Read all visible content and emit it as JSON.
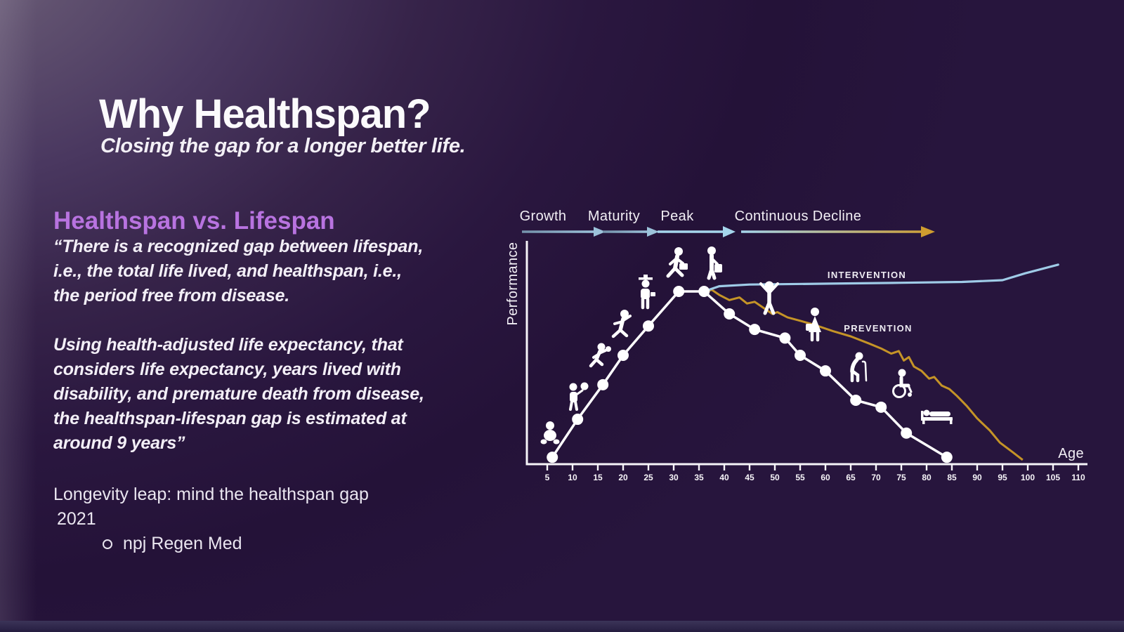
{
  "slide": {
    "title": "Why Healthspan?",
    "subtitle": "Closing the gap for a longer better life.",
    "section_heading": "Healthspan vs. Lifespan",
    "quote1_lines": [
      "“There is a recognized gap between lifespan,",
      "i.e., the total life lived, and healthspan, i.e.,",
      "the period free from disease."
    ],
    "quote2_lines": [
      "Using health-adjusted life expectancy, that",
      "considers life expectancy, years lived with",
      "disability, and premature death from disease,",
      "the healthspan-lifespan gap is estimated at",
      "around 9 years”"
    ],
    "citation_line1": "Longevity leap: mind the healthspan gap",
    "citation_year": "2021",
    "citation_source": "npj Regen Med"
  },
  "chart": {
    "phases": [
      "Growth",
      "Maturity",
      "Peak",
      "Continuous Decline"
    ],
    "y_axis_label": "Performance",
    "x_axis_label": "Age",
    "intervention_label": "INTERVENTION",
    "prevention_label": "PREVENTION",
    "colors": {
      "background_dark": "#241238",
      "background_light": "#6e6279",
      "accent_purple": "#b873e0",
      "series_white": "#ffffff",
      "intervention_blue": "#9fcbe7",
      "prevention_gold": "#c59427",
      "arrow_steel_start": "#7492ab",
      "arrow_steel_end": "#9cc2da",
      "arrow_sky": "#a5d5ec",
      "arrow_gold": "#cf9d2f",
      "axis": "#f6f4f8"
    }
  },
  "chart_data": {
    "type": "line",
    "xlabel": "Age",
    "ylabel": "Performance",
    "x_range": [
      5,
      110
    ],
    "x_ticks": [
      5,
      10,
      15,
      20,
      25,
      30,
      35,
      40,
      45,
      50,
      55,
      60,
      65,
      70,
      75,
      80,
      85,
      90,
      95,
      100,
      105,
      110
    ],
    "phases": [
      "Growth",
      "Maturity",
      "Peak",
      "Continuous Decline"
    ],
    "y_units": "relative performance (100 = peak, unlabeled axis)",
    "series": [
      {
        "name": "normal aging trajectory",
        "style": "white line with round dot markers",
        "points": [
          [
            6,
            4
          ],
          [
            11,
            26
          ],
          [
            16,
            46
          ],
          [
            20,
            63
          ],
          [
            25,
            80
          ],
          [
            31,
            100
          ],
          [
            36,
            100
          ],
          [
            41,
            87
          ],
          [
            46,
            78
          ],
          [
            52,
            73
          ],
          [
            55,
            63
          ],
          [
            60,
            54
          ],
          [
            66,
            37
          ],
          [
            71,
            33
          ],
          [
            76,
            18
          ],
          [
            84,
            4
          ]
        ]
      },
      {
        "name": "INTERVENTION",
        "style": "light blue line, flat then rising at far right",
        "points": [
          [
            36,
            100
          ],
          [
            39,
            103
          ],
          [
            45,
            104
          ],
          [
            61,
            104.5
          ],
          [
            75,
            105
          ],
          [
            87,
            105.5
          ],
          [
            95,
            106.5
          ],
          [
            99.5,
            110.5
          ],
          [
            106,
            115.5
          ]
        ]
      },
      {
        "name": "PREVENTION",
        "style": "gold jagged declining line",
        "points": [
          [
            36,
            99
          ],
          [
            37.5,
            101
          ],
          [
            39,
            98
          ],
          [
            41,
            95
          ],
          [
            43,
            96.5
          ],
          [
            44.5,
            93
          ],
          [
            46,
            94
          ],
          [
            48,
            90
          ],
          [
            49.5,
            87
          ],
          [
            50.5,
            88
          ],
          [
            52.5,
            85
          ],
          [
            55,
            83
          ],
          [
            58,
            80.5
          ],
          [
            61.5,
            77
          ],
          [
            65,
            74
          ],
          [
            68.5,
            70
          ],
          [
            71,
            67
          ],
          [
            73,
            64
          ],
          [
            74.5,
            65.5
          ],
          [
            75.5,
            60
          ],
          [
            76.5,
            62
          ],
          [
            77.5,
            56.5
          ],
          [
            79,
            54
          ],
          [
            80.5,
            49.5
          ],
          [
            81.5,
            50.5
          ],
          [
            83,
            45.5
          ],
          [
            84.5,
            43.5
          ],
          [
            86,
            39.5
          ],
          [
            88,
            33.5
          ],
          [
            90,
            26.5
          ],
          [
            92.5,
            19.5
          ],
          [
            94.5,
            12.5
          ],
          [
            97,
            7
          ],
          [
            99,
            2.5
          ]
        ]
      }
    ]
  }
}
